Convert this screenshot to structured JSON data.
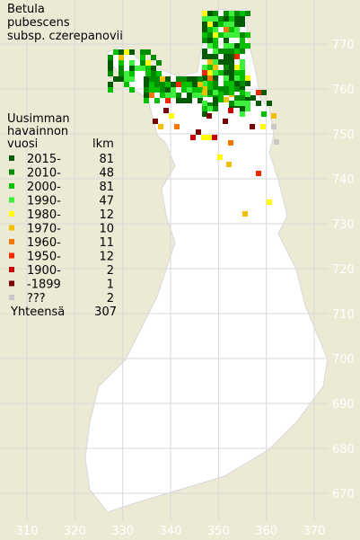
{
  "title": [
    "Betula",
    "pubescens",
    "subsp. czerepanovii"
  ],
  "legend": {
    "header": [
      "Uusimman",
      "havainnon",
      "vuosi"
    ],
    "count_header": "lkm",
    "entries": [
      {
        "label": "2015-",
        "count": 81,
        "color": "#005a00"
      },
      {
        "label": "2010-",
        "count": 48,
        "color": "#008c00"
      },
      {
        "label": "2000-",
        "count": 81,
        "color": "#00c000"
      },
      {
        "label": "1990-",
        "count": 47,
        "color": "#3cf03c"
      },
      {
        "label": "1980-",
        "count": 12,
        "color": "#ffff00"
      },
      {
        "label": "1970-",
        "count": 10,
        "color": "#f0c000"
      },
      {
        "label": "1960-",
        "count": 11,
        "color": "#f07800"
      },
      {
        "label": "1950-",
        "count": 12,
        "color": "#f02800"
      },
      {
        "label": "1900-",
        "count": 2,
        "color": "#c80000"
      },
      {
        "label": "-1899",
        "count": 1,
        "color": "#780000"
      },
      {
        "label": "???",
        "count": 2,
        "color": "#c8c8c8"
      }
    ],
    "total_label": "Yhteensä",
    "total": 307
  },
  "x_ticks": [
    310,
    320,
    330,
    340,
    350,
    360,
    370
  ],
  "y_ticks": [
    770,
    760,
    750,
    740,
    730,
    720,
    710,
    700,
    690,
    680,
    670
  ]
}
